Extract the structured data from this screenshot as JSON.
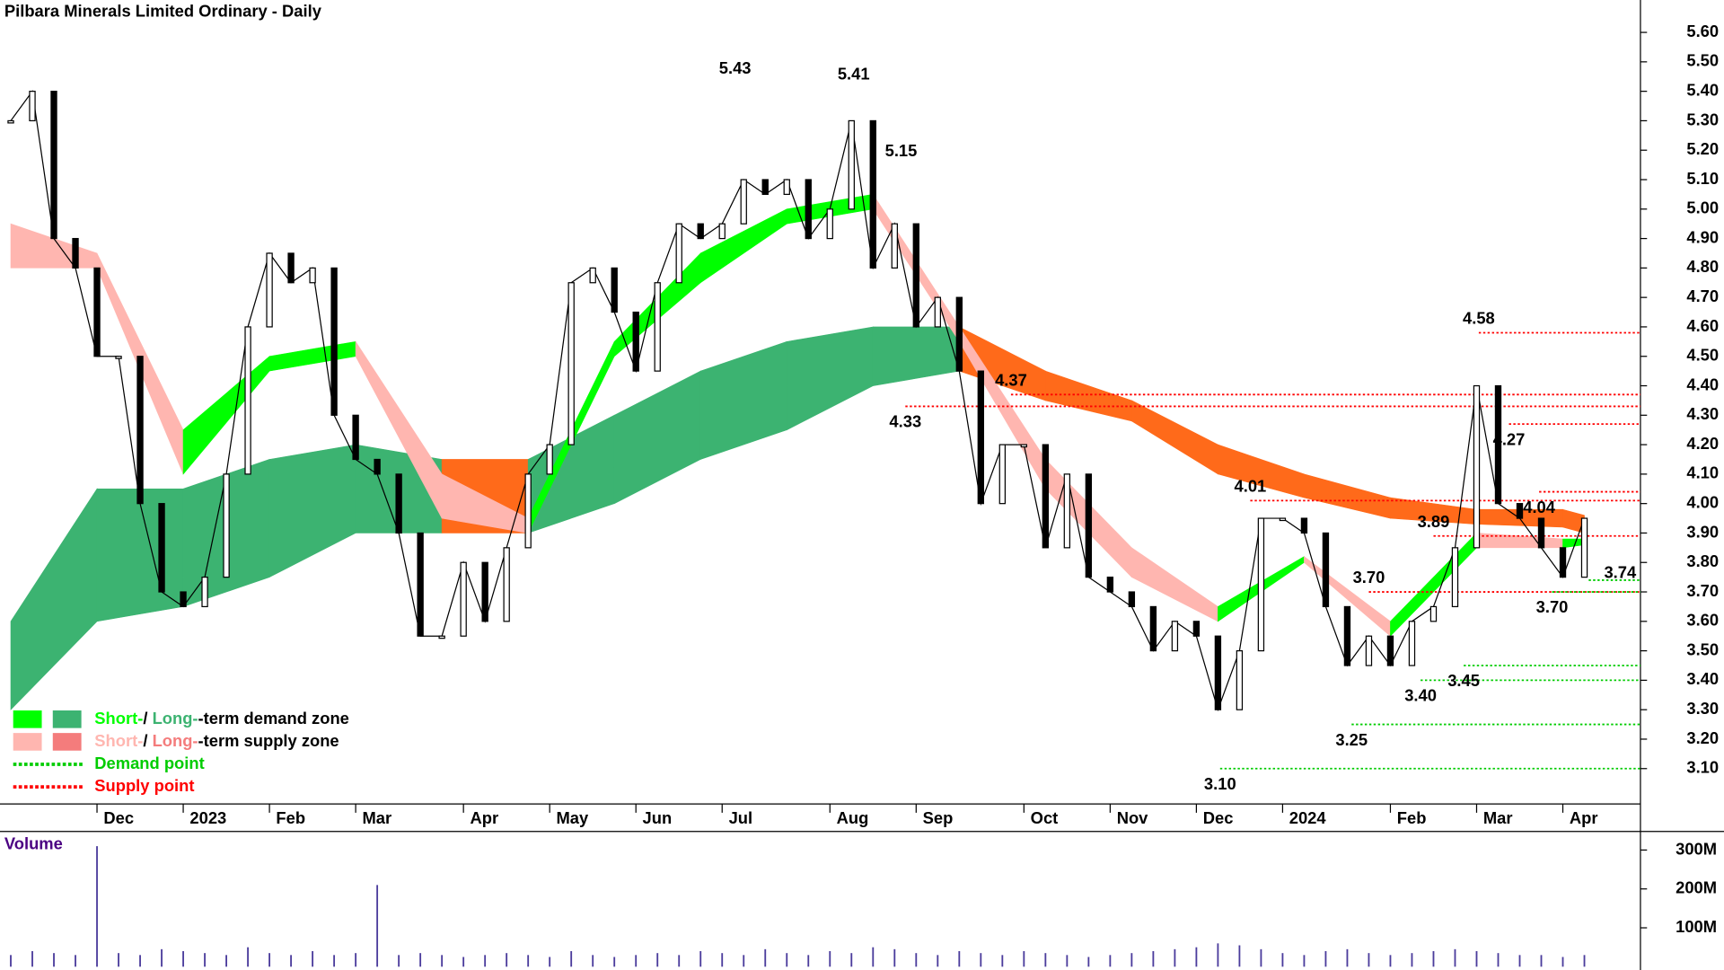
{
  "chart_data": {
    "type": "candlestick",
    "title": "Pilbara Minerals Limited Ordinary - Daily",
    "categories": [
      null,
      null,
      null,
      null,
      "Dec",
      null,
      null,
      null,
      "2023",
      null,
      null,
      null,
      "Feb",
      null,
      null,
      null,
      "Mar",
      null,
      null,
      null,
      null,
      "Apr",
      null,
      null,
      null,
      "May",
      null,
      null,
      null,
      "Jun",
      null,
      null,
      null,
      "Jul",
      null,
      null,
      null,
      null,
      "Aug",
      null,
      null,
      null,
      "Sep",
      null,
      null,
      null,
      null,
      "Oct",
      null,
      null,
      null,
      "Nov",
      null,
      null,
      null,
      "Dec",
      null,
      null,
      null,
      "2024",
      null,
      null,
      null,
      null,
      "Feb",
      null,
      null,
      null,
      "Mar",
      null,
      null,
      null,
      "Apr",
      null
    ],
    "xlim": [
      -0.5,
      75.6
    ],
    "ylim": [
      2.98,
      5.71
    ],
    "yticks": [
      {
        "value": 3.1,
        "label": "3.10"
      },
      {
        "value": 3.2,
        "label": "3.20"
      },
      {
        "value": 3.3,
        "label": "3.30"
      },
      {
        "value": 3.4,
        "label": "3.40"
      },
      {
        "value": 3.5,
        "label": "3.50"
      },
      {
        "value": 3.6,
        "label": "3.60"
      },
      {
        "value": 3.7,
        "label": "3.70"
      },
      {
        "value": 3.8,
        "label": "3.80"
      },
      {
        "value": 3.9,
        "label": "3.90"
      },
      {
        "value": 4,
        "label": "4.00"
      },
      {
        "value": 4.1,
        "label": "4.10"
      },
      {
        "value": 4.2,
        "label": "4.20"
      },
      {
        "value": 4.3,
        "label": "4.30"
      },
      {
        "value": 4.4,
        "label": "4.40"
      },
      {
        "value": 4.5,
        "label": "4.50"
      },
      {
        "value": 4.6,
        "label": "4.60"
      },
      {
        "value": 4.7,
        "label": "4.70"
      },
      {
        "value": 4.8,
        "label": "4.80"
      },
      {
        "value": 4.9,
        "label": "4.90"
      },
      {
        "value": 5,
        "label": "5.00"
      },
      {
        "value": 5.1,
        "label": "5.10"
      },
      {
        "value": 5.2,
        "label": "5.20"
      },
      {
        "value": 5.3,
        "label": "5.30"
      },
      {
        "value": 5.4,
        "label": "5.40"
      },
      {
        "value": 5.5,
        "label": "5.50"
      },
      {
        "value": 5.6,
        "label": "5.60"
      }
    ],
    "series": [
      {
        "name": "Close",
        "color": "#000000",
        "values": [
          5.3,
          5.4,
          4.9,
          4.8,
          4.5,
          4.5,
          4.0,
          3.7,
          3.65,
          3.75,
          4.1,
          4.6,
          4.85,
          4.75,
          4.8,
          4.3,
          4.15,
          4.1,
          3.9,
          3.55,
          3.55,
          3.8,
          3.6,
          3.85,
          4.1,
          4.2,
          4.75,
          4.8,
          4.65,
          4.45,
          4.75,
          4.95,
          4.9,
          4.95,
          5.1,
          5.05,
          5.1,
          4.9,
          5.0,
          5.3,
          4.8,
          4.95,
          4.6,
          4.7,
          4.45,
          4.0,
          4.2,
          4.2,
          3.85,
          4.1,
          3.75,
          3.7,
          3.65,
          3.5,
          3.6,
          3.55,
          3.3,
          3.5,
          3.95,
          3.95,
          3.9,
          3.65,
          3.45,
          3.55,
          3.45,
          3.6,
          3.65,
          3.85,
          4.4,
          4.0,
          3.95,
          3.85,
          3.75,
          3.95
        ]
      }
    ],
    "zones": [
      {
        "x": [
          0,
          4,
          8,
          12,
          16,
          20,
          24,
          28,
          32,
          36,
          40,
          44,
          48,
          52,
          56,
          60,
          64,
          68,
          72,
          73
        ],
        "lower": [
          3.3,
          3.6,
          3.65,
          3.75,
          3.9,
          3.9,
          3.9,
          4.0,
          4.15,
          4.25,
          4.4,
          4.45,
          4.35,
          4.28,
          4.1,
          4.02,
          3.95,
          3.93,
          3.92,
          3.9
        ],
        "upper": [
          3.6,
          4.05,
          4.05,
          4.15,
          4.2,
          4.15,
          4.15,
          4.3,
          4.45,
          4.55,
          4.6,
          4.6,
          4.45,
          4.35,
          4.2,
          4.1,
          4.02,
          3.98,
          3.98,
          3.96
        ],
        "demand_color": "#3cb371",
        "supply_color": "#ff6a1a"
      },
      {
        "x": [
          0,
          4,
          8,
          12,
          16,
          20,
          24,
          28,
          32,
          36,
          40,
          44,
          48,
          52,
          56,
          60,
          64,
          68,
          72,
          73
        ],
        "lower": [
          4.8,
          4.8,
          4.1,
          4.45,
          4.5,
          3.95,
          3.9,
          4.5,
          4.75,
          4.95,
          5.0,
          4.55,
          4.05,
          3.75,
          3.6,
          3.8,
          3.55,
          3.85,
          3.85,
          3.86
        ],
        "upper": [
          4.95,
          4.85,
          4.25,
          4.5,
          4.55,
          4.1,
          3.95,
          4.55,
          4.85,
          5.0,
          5.05,
          4.6,
          4.15,
          3.85,
          3.65,
          3.82,
          3.6,
          3.9,
          3.88,
          3.88
        ],
        "demand_color": "#00ff00",
        "supply_color": "#ffb6b0"
      }
    ],
    "annotations": [
      {
        "value": 5.43,
        "label": "5.43",
        "x": 33.6
      },
      {
        "value": 5.41,
        "label": "5.41",
        "x": 39.1
      },
      {
        "value": 5.15,
        "label": "5.15",
        "x": 41.3
      },
      {
        "value": 4.33,
        "label": "4.33",
        "x": 41.5,
        "color": "#ff0000"
      },
      {
        "value": 4.37,
        "label": "4.37",
        "x": 46.4,
        "color": "#ff0000"
      },
      {
        "value": 4.01,
        "label": "4.01",
        "x": 57.5,
        "color": "#ff0000"
      },
      {
        "value": 3.1,
        "label": "3.10",
        "x": 56.1,
        "color": "#00cc00"
      },
      {
        "value": 3.7,
        "label": "3.70",
        "x": 63,
        "color": "#ff0000"
      },
      {
        "value": 3.25,
        "label": "3.25",
        "x": 62.2,
        "color": "#00cc00"
      },
      {
        "value": 3.4,
        "label": "3.40",
        "x": 65.4,
        "color": "#00cc00"
      },
      {
        "value": 3.45,
        "label": "3.45",
        "x": 67.4,
        "color": "#00cc00"
      },
      {
        "value": 3.89,
        "label": "3.89",
        "x": 66,
        "color": "#ff0000"
      },
      {
        "value": 4.58,
        "label": "4.58",
        "x": 68.1,
        "color": "#ff0000"
      },
      {
        "value": 4.27,
        "label": "4.27",
        "x": 69.5,
        "color": "#ff0000"
      },
      {
        "value": 4.04,
        "label": "4.04",
        "x": 70.9,
        "color": "#ff0000"
      },
      {
        "value": 3.74,
        "label": "3.74",
        "x": 73.2,
        "color": "#00cc00"
      },
      {
        "value": 3.7,
        "label": "3.70",
        "x": 71.5,
        "color": "#00cc00"
      }
    ],
    "legend": [
      {
        "parts": [
          "Short-",
          "/ ",
          "Long-",
          "-term demand zone"
        ],
        "colors": [
          "#00ff00",
          "#000000",
          "#3cb371",
          "#000000"
        ]
      },
      {
        "parts": [
          "Short-",
          "/ ",
          "Long-",
          "-term supply zone"
        ],
        "colors": [
          "#ffb6b0",
          "#000000",
          "#f47c7c",
          "#000000"
        ]
      },
      {
        "parts": [
          "Demand point"
        ],
        "colors": [
          "#00cc00"
        ]
      },
      {
        "parts": [
          "Supply point"
        ],
        "colors": [
          "#ff0000"
        ]
      }
    ],
    "volume": {
      "label": "Volume",
      "color": "#4b3c9c",
      "ylim": [
        0,
        345000000
      ],
      "yticks": [
        {
          "value": 100000000,
          "label": "100M"
        },
        {
          "value": 200000000,
          "label": "200M"
        },
        {
          "value": 300000000,
          "label": "300M"
        }
      ],
      "values": [
        30000000,
        40000000,
        35000000,
        30000000,
        310000000,
        35000000,
        30000000,
        45000000,
        40000000,
        35000000,
        30000000,
        50000000,
        35000000,
        30000000,
        40000000,
        30000000,
        35000000,
        210000000,
        30000000,
        35000000,
        30000000,
        25000000,
        30000000,
        35000000,
        30000000,
        25000000,
        40000000,
        30000000,
        25000000,
        30000000,
        35000000,
        30000000,
        40000000,
        35000000,
        30000000,
        45000000,
        35000000,
        30000000,
        40000000,
        35000000,
        50000000,
        45000000,
        35000000,
        30000000,
        40000000,
        35000000,
        30000000,
        40000000,
        35000000,
        30000000,
        25000000,
        30000000,
        35000000,
        40000000,
        45000000,
        50000000,
        60000000,
        55000000,
        45000000,
        35000000,
        30000000,
        40000000,
        45000000,
        35000000,
        30000000,
        35000000,
        40000000,
        45000000,
        40000000,
        35000000,
        30000000,
        30000000,
        25000000,
        30000000
      ]
    }
  }
}
